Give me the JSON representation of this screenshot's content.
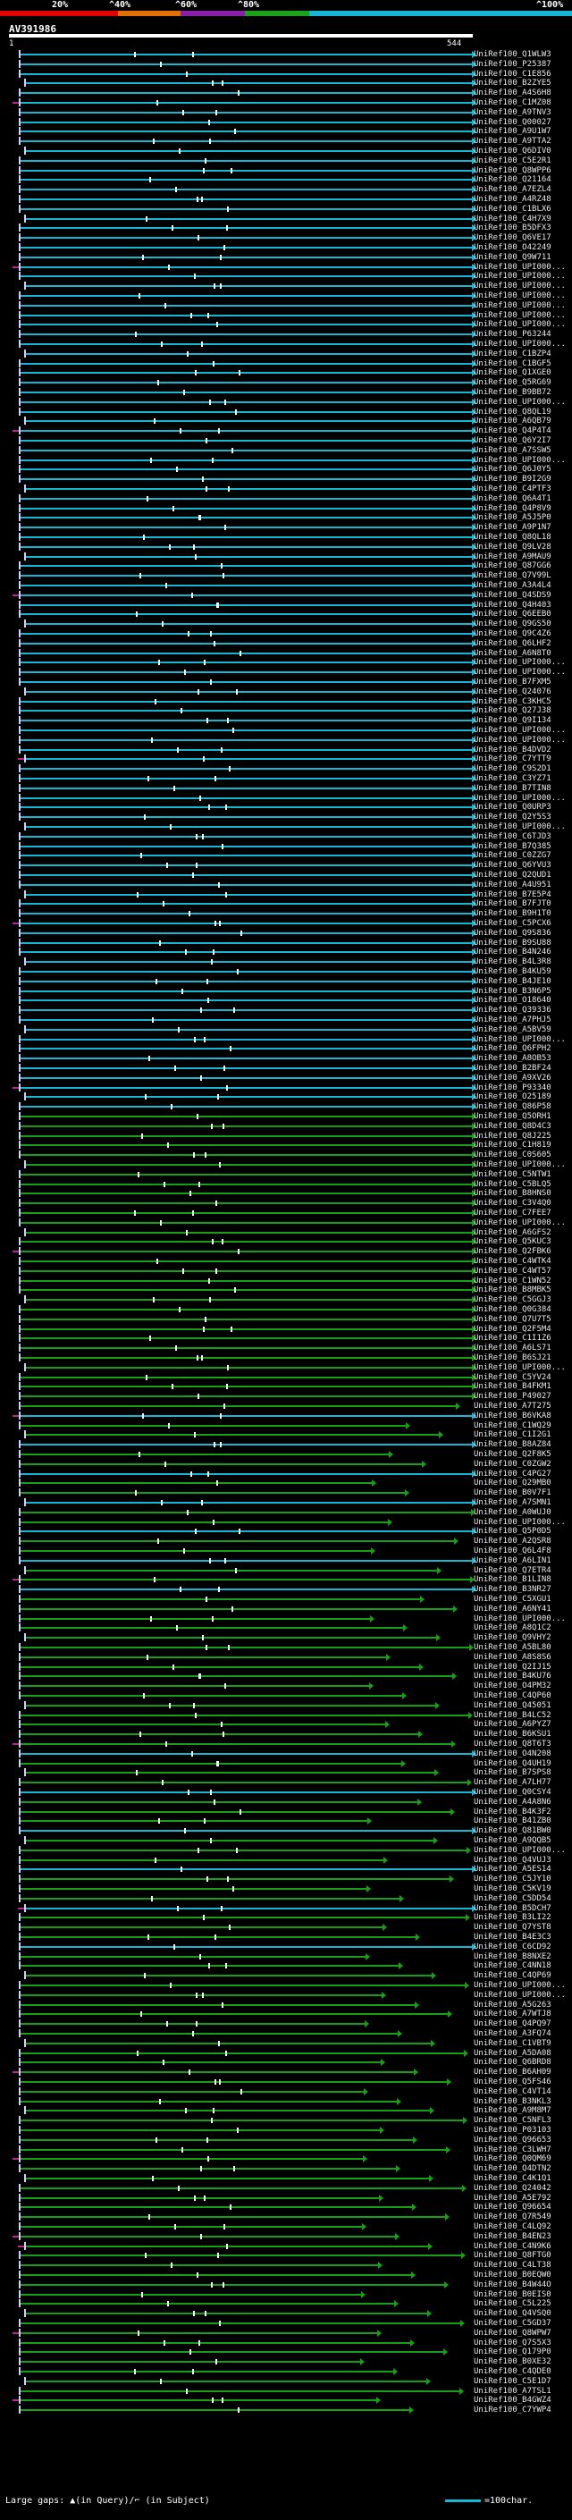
{
  "legend": {
    "labels": [
      "20%",
      "^40%",
      "^60%",
      "^80%",
      "^100%"
    ],
    "colors": [
      "#e00000",
      "#e07000",
      "#8a1ea8",
      "#1aa31a",
      "#18b4d6"
    ]
  },
  "query": {
    "name": "AV391986",
    "start": "1",
    "end": "544"
  },
  "footer": {
    "gaps_text": "Large gaps: ▲(in Query)/⌐ (in Subject)",
    "scale_text": "=100char."
  },
  "colors": {
    "green": "#16a014",
    "cyan": "#14b7d4",
    "magenta": "#c0218a",
    "white": "#ffffff"
  },
  "hits": [
    "UniRef100_Q1WLW3",
    "UniRef100_P25387",
    "UniRef100_C1E856",
    "UniRef100_B2ZYE5",
    "UniRef100_A4S6H8",
    "UniRef100_C1MZ08",
    "UniRef100_A9TNV3",
    "UniRef100_Q00027",
    "UniRef100_A9U1W7",
    "UniRef100_A9TTA2",
    "UniRef100_Q6DIV0",
    "UniRef100_C5E2R1",
    "UniRef100_Q8WPP6",
    "UniRef100_Q21164",
    "UniRef100_A7EZL4",
    "UniRef100_A4RZ48",
    "UniRef100_C1BLX6",
    "UniRef100_C4H7X9",
    "UniRef100_B5DFX3",
    "UniRef100_Q6VE17",
    "UniRef100_O42249",
    "UniRef100_Q9W711",
    "UniRef100_UPI000...",
    "UniRef100_UPI000...",
    "UniRef100_UPI000...",
    "UniRef100_UPI000...",
    "UniRef100_UPI000...",
    "UniRef100_UPI000...",
    "UniRef100_UPI000...",
    "UniRef100_P63244",
    "UniRef100_UPI000...",
    "UniRef100_C1BZP4",
    "UniRef100_C1BGF5",
    "UniRef100_Q1XGE0",
    "UniRef100_Q5RG69",
    "UniRef100_B9BB72",
    "UniRef100_UPI000...",
    "UniRef100_Q8QL19",
    "UniRef100_A6QB79",
    "UniRef100_Q4P4T4",
    "UniRef100_Q6Y2I7",
    "UniRef100_A7SSW5",
    "UniRef100_UPI000...",
    "UniRef100_Q6J0Y5",
    "UniRef100_B9I2G9",
    "UniRef100_C4PTF3",
    "UniRef100_Q6A4T1",
    "UniRef100_Q4P8V9",
    "UniRef100_A5J5P0",
    "UniRef100_A9P1N7",
    "UniRef100_Q8QL18",
    "UniRef100_Q9LV28",
    "UniRef100_A9MAU9",
    "UniRef100_Q87GG6",
    "UniRef100_Q7V99L",
    "UniRef100_A3A4L4",
    "UniRef100_Q4SDS9",
    "UniRef100_Q4H403",
    "UniRef100_Q6EEB0",
    "UniRef100_Q9GS50",
    "UniRef100_Q9C4Z6",
    "UniRef100_Q6LHF2",
    "UniRef100_A6N8T0",
    "UniRef100_UPI000...",
    "UniRef100_UPI000...",
    "UniRef100_B7FXM5",
    "UniRef100_Q24076",
    "UniRef100_C3KHC5",
    "UniRef100_Q27J38",
    "UniRef100_Q9I134",
    "UniRef100_UPI000...",
    "UniRef100_UPI000...",
    "UniRef100_B4DVD2",
    "UniRef100_C7YTT9",
    "UniRef100_C9S2D1",
    "UniRef100_C3YZ71",
    "UniRef100_B7TIN8",
    "UniRef100_UPI000...",
    "UniRef100_Q0URP3",
    "UniRef100_Q2Y5S3",
    "UniRef100_UPI000...",
    "UniRef100_C6TJD3",
    "UniRef100_B7Q385",
    "UniRef100_C0ZZG7",
    "UniRef100_Q6YVU3",
    "UniRef100_Q2QUD1",
    "UniRef100_A4U951",
    "UniRef100_B7E5P4",
    "UniRef100_B7FJT0",
    "UniRef100_B9H1T0",
    "UniRef100_C5PCX6",
    "UniRef100_Q9S836",
    "UniRef100_B9SU88",
    "UniRef100_B4N246",
    "UniRef100_B4L3R8",
    "UniRef100_B4KU59",
    "UniRef100_B4JE10",
    "UniRef100_B3N6P5",
    "UniRef100_O18640",
    "UniRef100_Q39336",
    "UniRef100_A7PHJ5",
    "UniRef100_A5BV59",
    "UniRef100_UPI000...",
    "UniRef100_Q6FPH2",
    "UniRef100_A8OB53",
    "UniRef100_B2BF24",
    "UniRef100_A9XV26",
    "UniRef100_P93340",
    "UniRef100_O25189",
    "UniRef100_Q86P58",
    "UniRef100_Q5ORH1",
    "UniRef100_Q8D4C3",
    "UniRef100_Q8J225",
    "UniRef100_C1H819",
    "UniRef100_C0S605",
    "UniRef100_UPI000...",
    "UniRef100_C5NTW1",
    "UniRef100_C5BLQ5",
    "UniRef100_B8HNS0",
    "UniRef100_C3V4Q0",
    "UniRef100_C7FEE7",
    "UniRef100_UPI000...",
    "UniRef100_A6GFS2",
    "UniRef100_Q5KUC3",
    "UniRef100_Q2FBK6",
    "UniRef100_C4WTK4",
    "UniRef100_C4WT57",
    "UniRef100_C1WN52",
    "UniRef100_B8MBK5",
    "UniRef100_C5GGJ3",
    "UniRef100_Q0G384",
    "UniRef100_Q7U7T5",
    "UniRef100_Q2F5M4",
    "UniRef100_C1I1Z6",
    "UniRef100_A6LS71",
    "UniRef100_B6SJ21",
    "UniRef100_UPI000...",
    "UniRef100_C5YV24",
    "UniRef100_B4FKM1",
    "UniRef100_P49027",
    "UniRef100_A7T275",
    "UniRef100_B6VKA8",
    "UniRef100_C1WQ29",
    "UniRef100_C1I2G1",
    "UniRef100_B8AZ84",
    "UniRef100_Q2F8K5",
    "UniRef100_C0ZGW2",
    "UniRef100_C4PG27",
    "UniRef100_Q29MB0",
    "UniRef100_B0V7F1",
    "UniRef100_A7SMN1",
    "UniRef100_A0WUJ0",
    "UniRef100_UPI000...",
    "UniRef100_Q5P0D5",
    "UniRef100_A2QSR8",
    "UniRef100_Q6L4F8",
    "UniRef100_A6LIN1",
    "UniRef100_Q7ETR4",
    "UniRef100_B1LIN8",
    "UniRef100_B3NR27",
    "UniRef100_C5XGU1",
    "UniRef100_A6NY41",
    "UniRef100_UPI000...",
    "UniRef100_A8Q1C2",
    "UniRef100_Q9VHY2",
    "UniRef100_A5BL80",
    "UniRef100_A8S8S6",
    "UniRef100_Q2IJ15",
    "UniRef100_B4KU76",
    "UniRef100_O4PM32",
    "UniRef100_C4QP60",
    "UniRef100_Q45051",
    "UniRef100_B4LC52",
    "UniRef100_A6PYZ7",
    "UniRef100_B6KSU1",
    "UniRef100_Q8T6T3",
    "UniRef100_O4N208",
    "UniRef100_Q4UH19",
    "UniRef100_B7SPS8",
    "UniRef100_A7LH77",
    "UniRef100_Q0CSY4",
    "UniRef100_A4A8N6",
    "UniRef100_B4K3F2",
    "UniRef100_B41ZB0",
    "UniRef100_Q81BW0",
    "UniRef100_A9QQB5",
    "UniRef100_UPI000...",
    "UniRef100_Q4VUJ3",
    "UniRef100_A5ES14",
    "UniRef100_C5JY10",
    "UniRef100_C5KV19",
    "UniRef100_C5DD54",
    "UniRef100_B5DCH7",
    "UniRef100_B3LI22",
    "UniRef100_Q7YST8",
    "UniRef100_B4E3C3",
    "UniRef100_C6CD92",
    "UniRef100_B8NXE2",
    "UniRef100_C4NN18",
    "UniRef100_C4QP69",
    "UniRef100_UPI000...",
    "UniRef100_UPI000...",
    "UniRef100_A5G263",
    "UniRef100_A7WTJ8",
    "UniRef100_Q4PQ97",
    "UniRef100_A3FQ74",
    "UniRef100_C1VBT9",
    "UniRef100_A5DA08",
    "UniRef100_Q6BRD8",
    "UniRef100_B6AH09",
    "UniRef100_Q5FS46",
    "UniRef100_C4VT14",
    "UniRef100_B3NKL3",
    "UniRef100_A9M8M7",
    "UniRef100_C5NFL3",
    "UniRef100_P03103",
    "UniRef100_Q96653",
    "UniRef100_C3LWH7",
    "UniRef100_Q0QM69",
    "UniRef100_Q4DTN2",
    "UniRef100_C4K1Q1",
    "UniRef100_Q24042",
    "UniRef100_A5E792",
    "UniRef100_Q96654",
    "UniRef100_Q7R549",
    "UniRef100_C4LQ92",
    "UniRef100_B4EN23",
    "UniRef100_C4N9K6",
    "UniRef100_Q8FTG0",
    "UniRef100_C4LT38",
    "UniRef100_B0EQW0",
    "UniRef100_B4W44O",
    "UniRef100_B0EIS0",
    "UniRef100_C5L225",
    "UniRef100_Q4VSQ0",
    "UniRef100_C5GD37",
    "UniRef100_Q8WPW7",
    "UniRef100_Q7S5X3",
    "UniRef100_Q179P0",
    "UniRef100_B0XE32",
    "UniRef100_C4QDE0",
    "UniRef100_C5E1D7",
    "UniRef100_A7TSL1",
    "UniRef100_B4GWZ4",
    "UniRef100_C7YWP4"
  ]
}
